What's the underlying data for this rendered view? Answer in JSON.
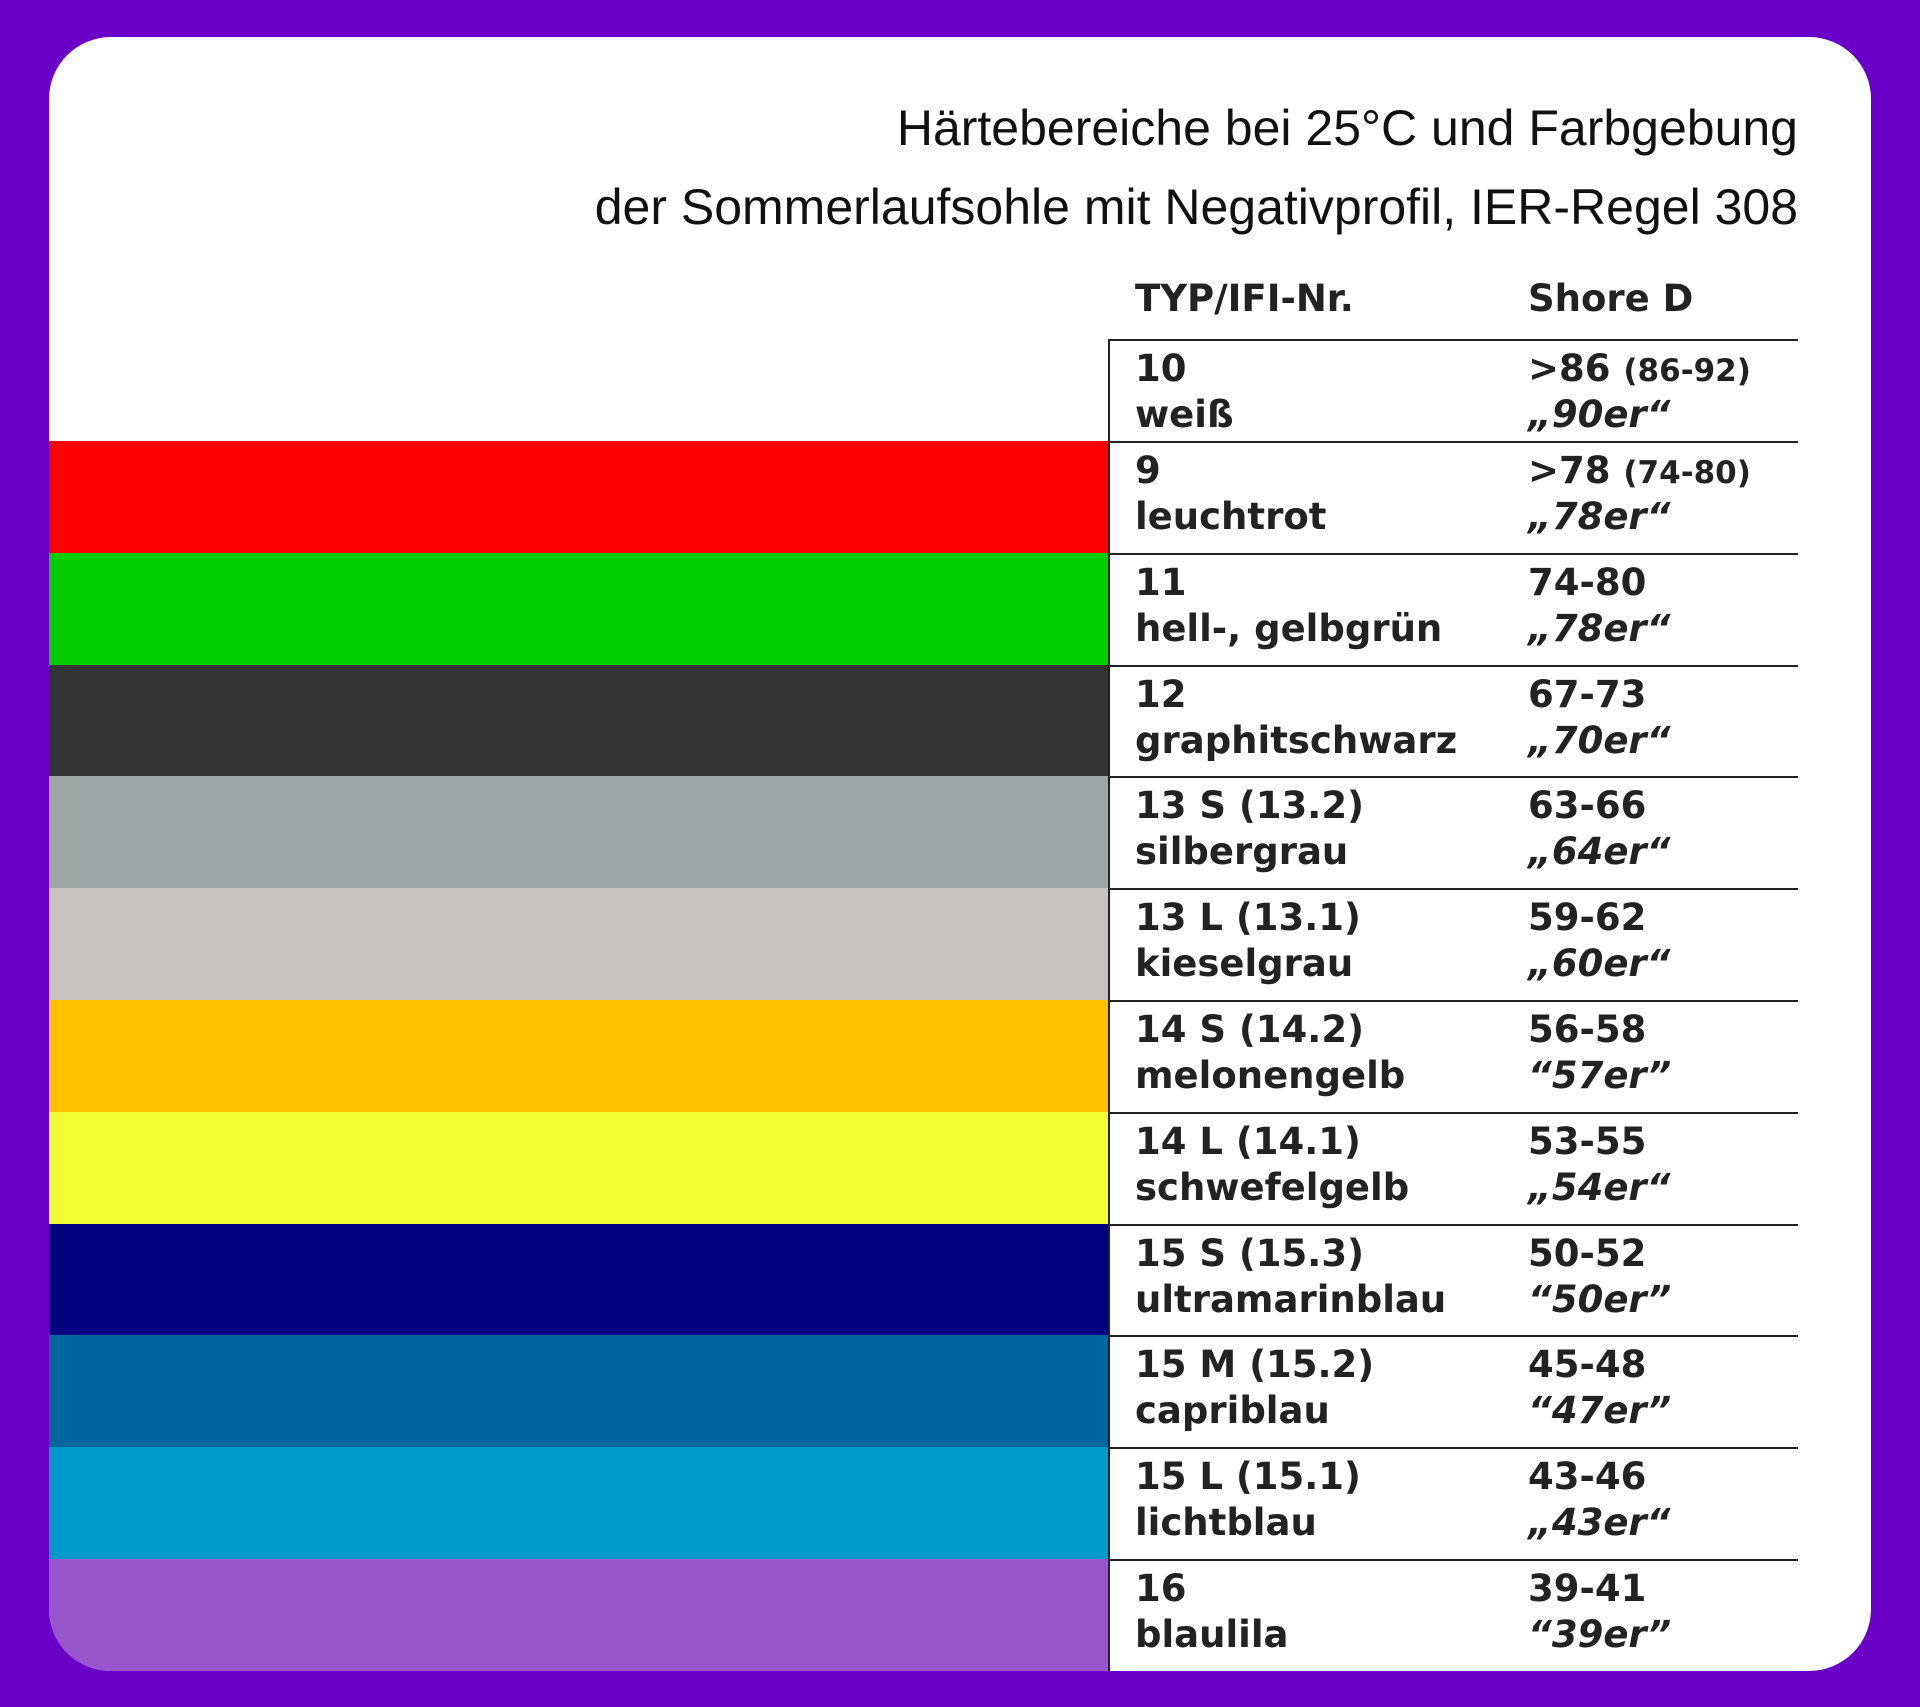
{
  "header": {
    "title_lines": [
      "Härtebereiche bei 25°C und Farbgebung",
      "der Sommerlaufsohle mit Negativprofil, IER-Regel 308"
    ]
  },
  "table": {
    "columns": [
      "TYP/IFI-Nr.",
      "Shore D"
    ],
    "rows": [
      {
        "nr": "10",
        "name": "weiß",
        "range": ">86",
        "note": "(86-92)",
        "nick": "„90er“",
        "color": "#ffffff"
      },
      {
        "nr": "9",
        "name": "leuchtrot",
        "range": ">78",
        "note": "(74-80)",
        "nick": "„78er“",
        "color": "#ff0000"
      },
      {
        "nr": "11",
        "name": "hell-, gelbgrün",
        "range": "74-80",
        "nick": "„78er“",
        "color": "#00cc00"
      },
      {
        "nr": "12",
        "name": "graphitschwarz",
        "range": "67-73",
        "nick": "„70er“",
        "color": "#333333"
      },
      {
        "nr": "13 S (13.2)",
        "name": "silbergrau",
        "range": "63-66",
        "nick": "„64er“",
        "color": "#9ea5a5"
      },
      {
        "nr": "13 L (13.1)",
        "name": "kieselgrau",
        "range": "59-62",
        "nick": "„60er“",
        "color": "#c8c3c3"
      },
      {
        "nr": "14 S (14.2)",
        "name": "melonengelb",
        "range": "56-58",
        "nick": "“57er”",
        "color": "#ffc000"
      },
      {
        "nr": "14 L (14.1)",
        "name": "schwefelgelb",
        "range": "53-55",
        "nick": "„54er“",
        "color": "#f0ff33"
      },
      {
        "nr": "15 S (15.3)",
        "name": "ultramarinblau",
        "range": "50-52",
        "nick": "“50er”",
        "color": "#000080"
      },
      {
        "nr": "15 M (15.2)",
        "name": "capriblau",
        "range": "45-48",
        "nick": "“47er”",
        "color": "#00669e"
      },
      {
        "nr": "15 L (15.1)",
        "name": "lichtblau",
        "range": "43-46",
        "nick": "„43er“",
        "color": "#0099cc"
      },
      {
        "nr": "16",
        "name": "blaulila",
        "range": "39-41",
        "nick": "“39er”",
        "color": "#9955cc"
      }
    ]
  }
}
